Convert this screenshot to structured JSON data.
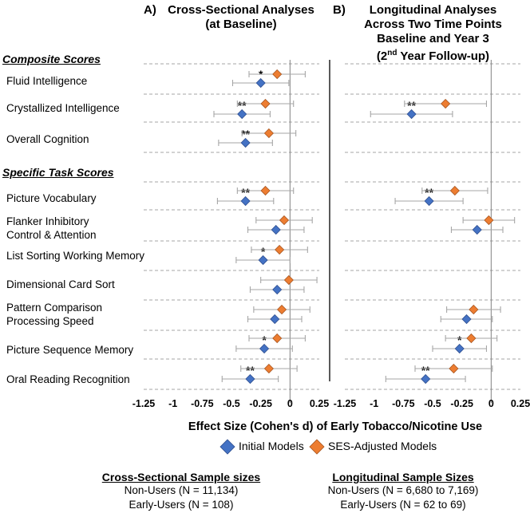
{
  "panels": {
    "a": {
      "letter": "A)",
      "title": [
        "Cross-Sectional Analyses",
        "(at Baseline)"
      ]
    },
    "b": {
      "letter": "B)",
      "title_lines": [
        "Longitudinal Analyses",
        "Across Two Time Points",
        "Baseline and Year 3"
      ],
      "title_last_pre": "(2",
      "title_last_sup": "nd",
      "title_last_post": " Year Follow-up)"
    }
  },
  "sections": {
    "composite": "Composite Scores",
    "specific": "Specific Task Scores"
  },
  "rows": [
    {
      "label": [
        "Fluid Intelligence"
      ]
    },
    {
      "label": [
        "Crystallized Intelligence"
      ]
    },
    {
      "label": [
        "Overall Cognition"
      ]
    },
    {
      "label": [
        "Picture Vocabulary"
      ]
    },
    {
      "label": [
        "Flanker Inhibitory",
        "Control & Attention"
      ]
    },
    {
      "label": [
        "List Sorting Working Memory"
      ]
    },
    {
      "label": [
        "Dimensional Card Sort"
      ]
    },
    {
      "label": [
        "Pattern Comparison",
        "Processing Speed"
      ]
    },
    {
      "label": [
        "Picture Sequence Memory"
      ]
    },
    {
      "label": [
        "Oral Reading Recognition"
      ]
    }
  ],
  "x_axis_title": "Effect Size (Cohen's d) of Early Tobacco/Nicotine Use",
  "legend": {
    "initial": "Initial Models",
    "ses": "SES-Adjusted Models"
  },
  "colors": {
    "initial": "#4472c4",
    "ses": "#ed7d31",
    "grid": "#a6a6a6",
    "whisker": "#a6a6a6"
  },
  "sample_sizes": {
    "cross": {
      "title": "Cross-Sectional Sample sizes",
      "non_users": "Non-Users (N = 11,134)",
      "early_users": "Early-Users  (N = 108)"
    },
    "long": {
      "title": "Longitudinal Sample Sizes",
      "non_users": "Non-Users (N = 6,680 to 7,169)",
      "early_users": "Early-Users (N = 62 to 69)"
    }
  },
  "chart_data": [
    {
      "type": "scatter",
      "title": "Cross-Sectional Analyses (at Baseline)",
      "xlabel": "Effect Size (Cohen's d) of Early Tobacco/Nicotine Use",
      "xlim": [
        -1.25,
        0.25
      ],
      "ticks": [
        "-1.25",
        "-1",
        "-0.75",
        "-0.5",
        "-0.25",
        "0",
        "0.25"
      ],
      "categories": [
        "Fluid Intelligence",
        "Crystallized Intelligence",
        "Overall Cognition",
        "Picture Vocabulary",
        "Flanker Inhibitory Control & Attention",
        "List Sorting Working Memory",
        "Dimensional Card Sort",
        "Pattern Comparison Processing Speed",
        "Picture Sequence Memory",
        "Oral Reading Recognition"
      ],
      "series": [
        {
          "name": "Initial Models",
          "values": [
            -0.25,
            -0.41,
            -0.38,
            -0.38,
            -0.12,
            -0.23,
            -0.11,
            -0.13,
            -0.22,
            -0.34
          ],
          "ci_low": [
            -0.49,
            -0.65,
            -0.61,
            -0.62,
            -0.36,
            -0.46,
            -0.34,
            -0.36,
            -0.46,
            -0.58
          ],
          "ci_high": [
            -0.01,
            -0.17,
            -0.15,
            -0.14,
            0.12,
            0.0,
            0.12,
            0.1,
            0.02,
            -0.1
          ],
          "annotations": [
            "*",
            "**",
            "**",
            "**",
            "",
            "*",
            "",
            "",
            "*",
            "**"
          ]
        },
        {
          "name": "SES-Adjusted Models",
          "values": [
            -0.11,
            -0.21,
            -0.18,
            -0.21,
            -0.05,
            -0.09,
            -0.01,
            -0.07,
            -0.11,
            -0.18
          ],
          "ci_low": [
            -0.35,
            -0.45,
            -0.41,
            -0.45,
            -0.29,
            -0.33,
            -0.25,
            -0.31,
            -0.35,
            -0.42
          ],
          "ci_high": [
            0.13,
            0.03,
            0.05,
            0.03,
            0.19,
            0.15,
            0.23,
            0.17,
            0.13,
            0.06
          ]
        }
      ]
    },
    {
      "type": "scatter",
      "title": "Longitudinal Analyses Across Two Time Points Baseline and Year 3 (2nd Year Follow-up)",
      "xlabel": "Effect Size (Cohen's d) of Early Tobacco/Nicotine Use",
      "xlim": [
        -1.25,
        0.25
      ],
      "ticks": [
        "-1.25",
        "-1",
        "-0.75",
        "-0.5",
        "-0.25",
        "0",
        "0.25"
      ],
      "categories": [
        "Fluid Intelligence",
        "Crystallized Intelligence",
        "Overall Cognition",
        "Picture Vocabulary",
        "Flanker Inhibitory Control & Attention",
        "List Sorting Working Memory",
        "Dimensional Card Sort",
        "Pattern Comparison Processing Speed",
        "Picture Sequence Memory",
        "Oral Reading Recognition"
      ],
      "series": [
        {
          "name": "Initial Models",
          "values": [
            null,
            -0.68,
            null,
            -0.53,
            -0.12,
            null,
            null,
            -0.21,
            -0.27,
            -0.56
          ],
          "ci_low": [
            null,
            -1.03,
            null,
            -0.82,
            -0.34,
            null,
            null,
            -0.43,
            -0.5,
            -0.9
          ],
          "ci_high": [
            null,
            -0.33,
            null,
            -0.24,
            0.1,
            null,
            null,
            0.01,
            -0.04,
            -0.22
          ],
          "annotations": [
            "",
            "**",
            "",
            "**",
            "",
            "",
            "",
            "",
            "*",
            "**"
          ]
        },
        {
          "name": "SES-Adjusted Models",
          "values": [
            null,
            -0.39,
            null,
            -0.31,
            -0.02,
            null,
            null,
            -0.15,
            -0.17,
            -0.32
          ],
          "ci_low": [
            null,
            -0.74,
            null,
            -0.59,
            -0.24,
            null,
            null,
            -0.38,
            -0.39,
            -0.65
          ],
          "ci_high": [
            null,
            -0.04,
            null,
            -0.03,
            0.2,
            null,
            null,
            0.08,
            0.05,
            0.01
          ]
        }
      ]
    }
  ]
}
